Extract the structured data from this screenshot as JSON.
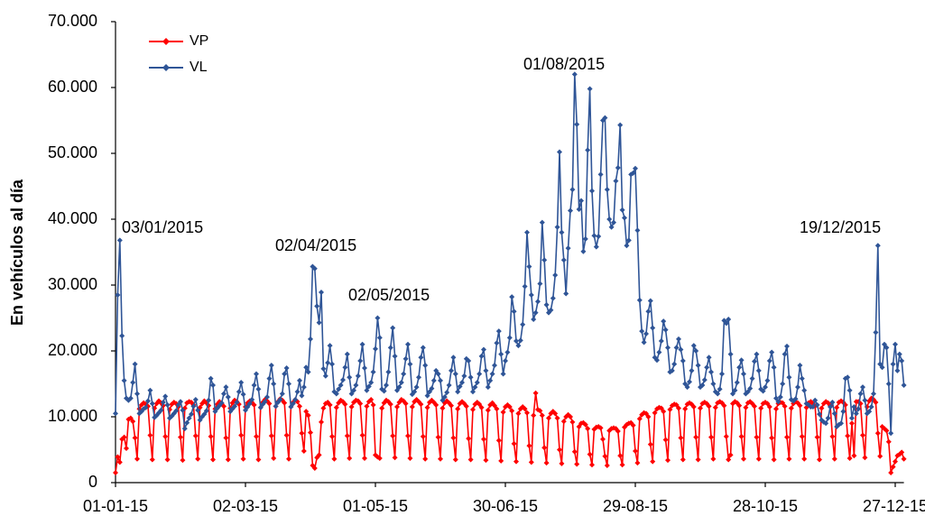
{
  "chart_data": {
    "type": "line",
    "y_label": "En vehículos al día",
    "annotations": [
      "03/01/2015",
      "02/04/2015",
      "02/05/2015",
      "01/08/2015",
      "19/12/2015"
    ],
    "legend": "upper left",
    "xlim": [
      0,
      364
    ],
    "xticks": [
      {
        "value": 0,
        "label": "01-01-15"
      },
      {
        "value": 60,
        "label": "02-03-15"
      },
      {
        "value": 120,
        "label": "01-05-15"
      },
      {
        "value": 180,
        "label": "30-06-15"
      },
      {
        "value": 240,
        "label": "29-08-15"
      },
      {
        "value": 300,
        "label": "28-10-15"
      },
      {
        "value": 360,
        "label": "27-12-15"
      }
    ],
    "ylim": [
      0,
      70000
    ],
    "yticks": [
      0,
      {
        "value": 10000,
        "label": "10.000"
      },
      {
        "value": 20000,
        "label": "20.000"
      },
      {
        "value": 30000,
        "label": "30.000"
      },
      {
        "value": 40000,
        "label": "40.000"
      },
      {
        "value": 50000,
        "label": "50.000"
      },
      {
        "value": 60000,
        "label": "60.000"
      },
      {
        "value": 70000,
        "label": "70.000"
      }
    ],
    "grid": false,
    "series": [
      {
        "name": "VP",
        "color": "#ff0000",
        "values": [
          1500,
          3900,
          3100,
          6600,
          6900,
          5200,
          9600,
          9800,
          9300,
          6800,
          3600,
          11200,
          11800,
          12100,
          11900,
          11600,
          7200,
          3500,
          11300,
          12000,
          12400,
          12100,
          11700,
          7000,
          3500,
          11100,
          11900,
          12200,
          12000,
          11500,
          6900,
          3400,
          11300,
          12100,
          12300,
          12200,
          11800,
          7100,
          3600,
          11400,
          12000,
          12400,
          12100,
          11700,
          7000,
          3500,
          11200,
          11900,
          12300,
          12000,
          11600,
          6800,
          3500,
          11300,
          12100,
          12500,
          12300,
          11900,
          7200,
          3600,
          11500,
          12100,
          12400,
          12200,
          11800,
          7000,
          3500,
          11400,
          12200,
          12600,
          12400,
          12000,
          7100,
          3700,
          11600,
          12300,
          12700,
          12500,
          12100,
          7200,
          3600,
          11500,
          12200,
          12600,
          12300,
          11600,
          7500,
          4800,
          10800,
          10200,
          7600,
          2600,
          2200,
          3800,
          4200,
          9200,
          11300,
          12000,
          12200,
          11800,
          7000,
          3600,
          11400,
          12100,
          12500,
          12300,
          11900,
          7100,
          3700,
          11500,
          12200,
          12500,
          12400,
          12000,
          7200,
          3700,
          11600,
          12300,
          12600,
          11800,
          4200,
          3900,
          3700,
          11300,
          12100,
          12500,
          12300,
          11900,
          7100,
          3800,
          11500,
          12200,
          12600,
          12400,
          12000,
          7100,
          3700,
          11500,
          12300,
          12600,
          12300,
          11900,
          7000,
          3600,
          11400,
          12200,
          12500,
          12200,
          11800,
          6900,
          3600,
          11300,
          12100,
          12400,
          12100,
          11700,
          6800,
          3500,
          11200,
          12000,
          12300,
          12000,
          11600,
          6700,
          3500,
          11100,
          11900,
          12200,
          11900,
          11400,
          6600,
          3400,
          11000,
          11800,
          12100,
          11700,
          11200,
          6400,
          3300,
          10700,
          11500,
          11800,
          11500,
          10900,
          5900,
          3200,
          10500,
          11200,
          11500,
          11200,
          10600,
          5600,
          3100,
          10200,
          13600,
          11100,
          10900,
          10200,
          5300,
          3000,
          9800,
          10500,
          10800,
          10500,
          9800,
          5000,
          2900,
          9300,
          10000,
          10300,
          10000,
          9200,
          4700,
          2800,
          8500,
          9000,
          9100,
          8800,
          8200,
          4300,
          2700,
          8100,
          8400,
          8500,
          8300,
          6600,
          4000,
          2600,
          7900,
          8200,
          8300,
          8200,
          7800,
          4100,
          2700,
          8400,
          8800,
          9000,
          9100,
          8700,
          4800,
          3000,
          9700,
          10300,
          10600,
          10500,
          10000,
          5800,
          3200,
          10600,
          11200,
          11400,
          11300,
          10800,
          6500,
          3400,
          11100,
          11700,
          11900,
          11800,
          11300,
          6800,
          3500,
          11200,
          11900,
          12100,
          11900,
          11500,
          6900,
          3500,
          11300,
          12000,
          12200,
          12000,
          11600,
          6900,
          3600,
          11400,
          12100,
          12300,
          12100,
          11700,
          7000,
          3500,
          4200,
          12000,
          12300,
          12100,
          11700,
          7000,
          3600,
          11400,
          12100,
          12300,
          12000,
          11600,
          6900,
          3600,
          11300,
          12000,
          12200,
          12000,
          11500,
          6800,
          3500,
          11200,
          12000,
          12200,
          12100,
          11600,
          6900,
          3600,
          11300,
          12000,
          12300,
          12100,
          11700,
          7000,
          3600,
          11400,
          12100,
          12300,
          12000,
          11600,
          6900,
          3500,
          11300,
          12000,
          12300,
          12100,
          11700,
          7000,
          3600,
          11400,
          12200,
          12400,
          12200,
          11800,
          7100,
          3700,
          9000,
          4100,
          12300,
          12300,
          12000,
          7200,
          3800,
          11500,
          12400,
          12800,
          12600,
          12200,
          7500,
          4000,
          8500,
          8200,
          7900,
          6200,
          1500,
          2400,
          3200,
          4100,
          4300,
          4600,
          3600
        ]
      },
      {
        "name": "VL",
        "color": "#2f5597",
        "values": [
          10500,
          28500,
          36800,
          22300,
          15500,
          12800,
          12500,
          12800,
          15200,
          18000,
          13500,
          10500,
          10800,
          11200,
          11400,
          12400,
          14000,
          12000,
          9900,
          10200,
          10600,
          11000,
          12200,
          13100,
          11800,
          9800,
          10100,
          10500,
          10900,
          11800,
          12300,
          11000,
          8200,
          9100,
          9800,
          10400,
          11600,
          12600,
          11000,
          9500,
          10000,
          10400,
          10900,
          12500,
          15800,
          14800,
          10800,
          11300,
          11700,
          12100,
          13500,
          14500,
          13000,
          10800,
          11200,
          11600,
          12200,
          13800,
          15200,
          13400,
          11000,
          11500,
          12000,
          12600,
          14800,
          16500,
          14200,
          11400,
          11900,
          12300,
          13000,
          15800,
          17800,
          15000,
          11600,
          12200,
          12600,
          13500,
          16500,
          17400,
          15000,
          11500,
          12000,
          12600,
          13800,
          15500,
          13200,
          14500,
          17500,
          16800,
          21800,
          32800,
          32500,
          26800,
          24300,
          28900,
          17300,
          16200,
          18200,
          20800,
          18000,
          13800,
          13500,
          14200,
          14800,
          15600,
          17500,
          19500,
          16000,
          13500,
          14000,
          14800,
          16200,
          18500,
          21000,
          17400,
          14000,
          14600,
          15200,
          16800,
          20300,
          25000,
          22000,
          14200,
          13900,
          14800,
          16800,
          20500,
          23500,
          19200,
          14000,
          14500,
          15200,
          16500,
          18800,
          21000,
          18000,
          13400,
          13800,
          14500,
          16000,
          19000,
          20500,
          17800,
          13200,
          13800,
          14300,
          15500,
          17000,
          16500,
          15500,
          12500,
          13000,
          13700,
          14800,
          17000,
          19000,
          16500,
          13800,
          14600,
          15200,
          16200,
          18800,
          18500,
          16000,
          13800,
          14500,
          15200,
          16500,
          19200,
          20200,
          17000,
          14500,
          15500,
          16500,
          17800,
          21200,
          23000,
          19500,
          16500,
          18500,
          19800,
          22000,
          28200,
          26000,
          21500,
          20800,
          21600,
          24000,
          29800,
          38000,
          32800,
          28500,
          24800,
          25800,
          27500,
          30200,
          39500,
          33800,
          27000,
          25800,
          26200,
          28000,
          31500,
          38800,
          50200,
          38000,
          33800,
          28700,
          35600,
          41300,
          44500,
          62000,
          54400,
          41500,
          42800,
          35100,
          37000,
          50500,
          59800,
          44300,
          37500,
          35800,
          37400,
          46800,
          55000,
          55400,
          44500,
          40000,
          38800,
          39500,
          45800,
          47800,
          54300,
          41400,
          40200,
          36000,
          36800,
          46800,
          47000,
          47700,
          38300,
          27700,
          23000,
          21300,
          22600,
          26000,
          27600,
          23500,
          19000,
          18600,
          19800,
          21500,
          24500,
          23200,
          20500,
          16800,
          17000,
          18000,
          20500,
          21800,
          20200,
          18500,
          15000,
          14500,
          15300,
          17000,
          20800,
          20000,
          17800,
          14500,
          14800,
          15600,
          17500,
          19000,
          16800,
          15000,
          13800,
          13500,
          14200,
          16500,
          24600,
          24200,
          24800,
          19500,
          13500,
          14000,
          15200,
          17500,
          18600,
          16500,
          13500,
          13800,
          14300,
          15800,
          18400,
          19500,
          17000,
          14200,
          13900,
          14500,
          15500,
          18500,
          19800,
          17500,
          12800,
          12300,
          13000,
          15000,
          19500,
          20700,
          16000,
          12600,
          12400,
          12700,
          14500,
          17800,
          15800,
          14000,
          12000,
          11800,
          11500,
          11500,
          12500,
          11800,
          10400,
          9500,
          9200,
          9000,
          9800,
          11500,
          12200,
          10500,
          8500,
          8800,
          9000,
          10800,
          15800,
          16000,
          14000,
          9800,
          11500,
          10500,
          11200,
          13500,
          14500,
          12500,
          10500,
          10800,
          11500,
          13500,
          22800,
          36000,
          18000,
          17500,
          21000,
          20500,
          15000,
          7500,
          18000,
          21000,
          17000,
          19500,
          18500,
          14800
        ]
      }
    ]
  }
}
